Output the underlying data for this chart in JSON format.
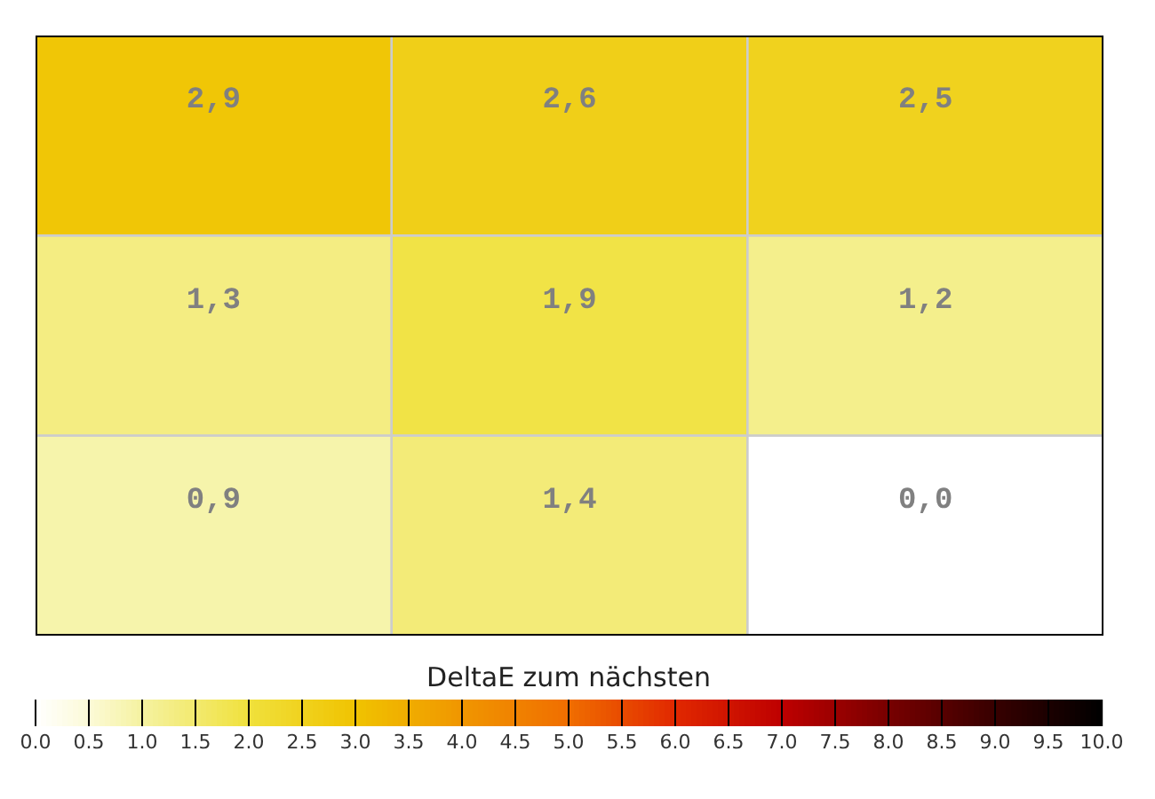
{
  "chart_data": {
    "type": "heatmap",
    "clabel": "DeltaE zum nächsten",
    "categories": [
      null,
      null,
      null
    ],
    "y_categories": [
      null,
      null,
      null
    ],
    "cells": [
      [
        2.9,
        2.6,
        2.5
      ],
      [
        1.3,
        1.9,
        1.2
      ],
      [
        0.9,
        1.4,
        0.0
      ]
    ],
    "cell_labels": [
      [
        "2,9",
        "2,6",
        "2,5"
      ],
      [
        "1,3",
        "1,9",
        "1,2"
      ],
      [
        "0,9",
        "1,4",
        "0,0"
      ]
    ],
    "clim": [
      0,
      10
    ],
    "cticks": [
      {
        "value": 0,
        "label": "0.0"
      },
      {
        "value": 0.5,
        "label": "0.5"
      },
      {
        "value": 1,
        "label": "1.0"
      },
      {
        "value": 1.5,
        "label": "1.5"
      },
      {
        "value": 2,
        "label": "2.0"
      },
      {
        "value": 2.5,
        "label": "2.5"
      },
      {
        "value": 3,
        "label": "3.0"
      },
      {
        "value": 3.5,
        "label": "3.5"
      },
      {
        "value": 4,
        "label": "4.0"
      },
      {
        "value": 4.5,
        "label": "4.5"
      },
      {
        "value": 5,
        "label": "5.0"
      },
      {
        "value": 5.5,
        "label": "5.5"
      },
      {
        "value": 6,
        "label": "6.0"
      },
      {
        "value": 6.5,
        "label": "6.5"
      },
      {
        "value": 7,
        "label": "7.0"
      },
      {
        "value": 7.5,
        "label": "7.5"
      },
      {
        "value": 8,
        "label": "8.0"
      },
      {
        "value": 8.5,
        "label": "8.5"
      },
      {
        "value": 9,
        "label": "9.0"
      },
      {
        "value": 9.5,
        "label": "9.5"
      },
      {
        "value": 10,
        "label": "10.0"
      }
    ]
  }
}
